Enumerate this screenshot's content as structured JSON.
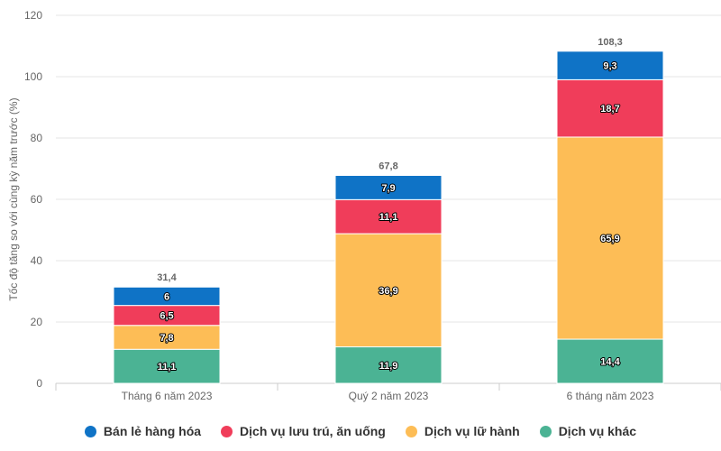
{
  "chart_data": {
    "type": "bar",
    "stacked": true,
    "categories": [
      "Tháng 6 năm 2023",
      "Quý 2 năm 2023",
      "6 tháng năm 2023"
    ],
    "series": [
      {
        "name": "Dịch vụ khác",
        "values": [
          11.1,
          11.9,
          14.4
        ],
        "color": "#4bb394",
        "labels": [
          "11,1",
          "11,9",
          "14,4"
        ]
      },
      {
        "name": "Dịch vụ lữ hành",
        "values": [
          7.8,
          36.9,
          65.9
        ],
        "color": "#fdbd56",
        "labels": [
          "7,8",
          "36,9",
          "65,9"
        ]
      },
      {
        "name": "Dịch vụ lưu trú, ăn uống",
        "values": [
          6.5,
          11.1,
          18.7
        ],
        "color": "#f03d5a",
        "labels": [
          "6,5",
          "11,1",
          "18,7"
        ]
      },
      {
        "name": "Bán lẻ hàng hóa",
        "values": [
          6,
          7.9,
          9.3
        ],
        "color": "#0f73c6",
        "labels": [
          "6",
          "7,9",
          "9,3"
        ]
      }
    ],
    "totals": [
      "31,4",
      "67,8",
      "108,3"
    ],
    "total_values": [
      31.4,
      67.8,
      108.3
    ],
    "ylabel": "Tốc độ tăng so với cùng kỳ năm trước (%)",
    "xlabel": "",
    "ylim": [
      0,
      120
    ],
    "yticks": [
      0,
      20,
      40,
      60,
      80,
      100,
      120
    ],
    "grid": true,
    "legend_position": "bottom",
    "legend_order": [
      "Bán lẻ hàng hóa",
      "Dịch vụ lưu trú, ăn uống",
      "Dịch vụ lữ hành",
      "Dịch vụ khác"
    ]
  }
}
